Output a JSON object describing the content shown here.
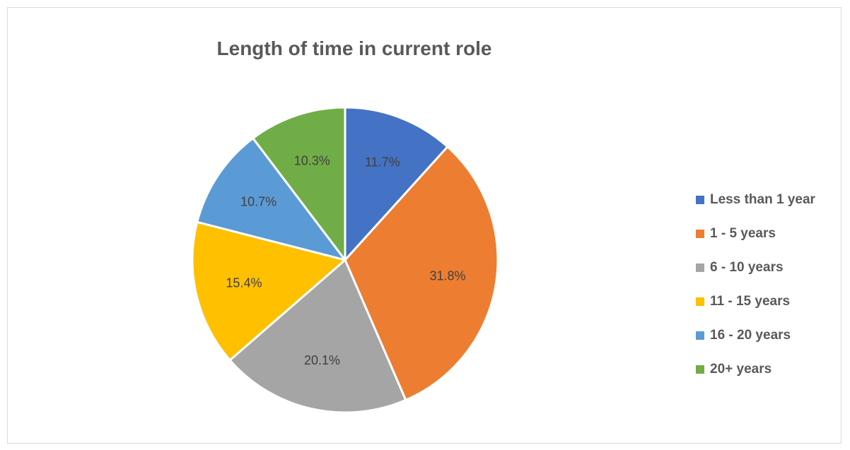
{
  "chart_data": {
    "type": "pie",
    "title": "Length of time in current role",
    "categories": [
      "Less than 1 year",
      "1 - 5 years",
      "6 - 10 years",
      "11 - 15 years",
      "16 - 20 years",
      "20+ years"
    ],
    "values": [
      11.7,
      31.8,
      20.1,
      15.4,
      10.7,
      10.3
    ],
    "data_labels": [
      "11.7%",
      "31.8%",
      "20.1%",
      "15.4%",
      "10.7%",
      "10.3%"
    ],
    "colors": [
      "#4472c4",
      "#ed7d31",
      "#a5a5a5",
      "#ffc000",
      "#5b9bd5",
      "#70ad47"
    ],
    "legend_position": "right"
  }
}
